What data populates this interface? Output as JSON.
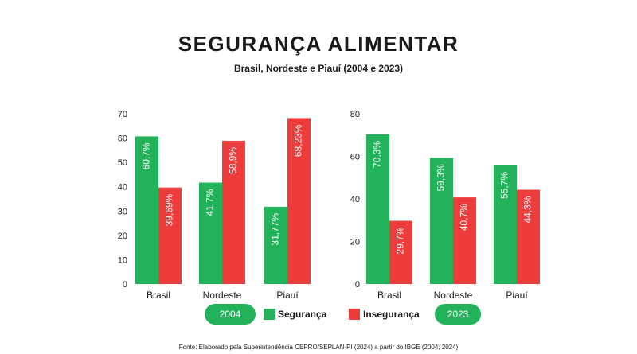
{
  "colors": {
    "seguranca": "#22b35a",
    "inseguranca": "#ee3b3b",
    "pill": "#22b35a"
  },
  "title": "SEGURANÇA ALIMENTAR",
  "subtitle": "Brasil, Nordeste e Piauí (2004 e 2023)",
  "legend": {
    "seguranca": "Segurança",
    "inseguranca": "Insegurança"
  },
  "source": "Fonte: Elaborado pela Superintendência CEPRO/SEPLAN-PI (2024) a partir do IBGE (2004; 2024)",
  "chart_data": [
    {
      "type": "bar",
      "period": "2004",
      "categories": [
        "Brasil",
        "Nordeste",
        "Piauí"
      ],
      "ylim": [
        0,
        70
      ],
      "yticks": [
        0,
        10,
        20,
        30,
        40,
        50,
        60,
        70
      ],
      "series": [
        {
          "name": "Segurança",
          "values": [
            60.7,
            41.7,
            31.77
          ],
          "labels": [
            "60,7%",
            "41,7%",
            "31,77%"
          ]
        },
        {
          "name": "Insegurança",
          "values": [
            39.69,
            58.9,
            68.23
          ],
          "labels": [
            "39,69%",
            "58,9%",
            "68,23%"
          ]
        }
      ]
    },
    {
      "type": "bar",
      "period": "2023",
      "categories": [
        "Brasil",
        "Nordeste",
        "Piauí"
      ],
      "ylim": [
        0,
        80
      ],
      "yticks": [
        0,
        20,
        40,
        60,
        80
      ],
      "series": [
        {
          "name": "Segurança",
          "values": [
            70.3,
            59.3,
            55.7
          ],
          "labels": [
            "70,3%",
            "59,3%",
            "55,7%"
          ]
        },
        {
          "name": "Insegurança",
          "values": [
            29.7,
            40.7,
            44.3
          ],
          "labels": [
            "29,7%",
            "40,7%",
            "44,3%"
          ]
        }
      ]
    }
  ]
}
